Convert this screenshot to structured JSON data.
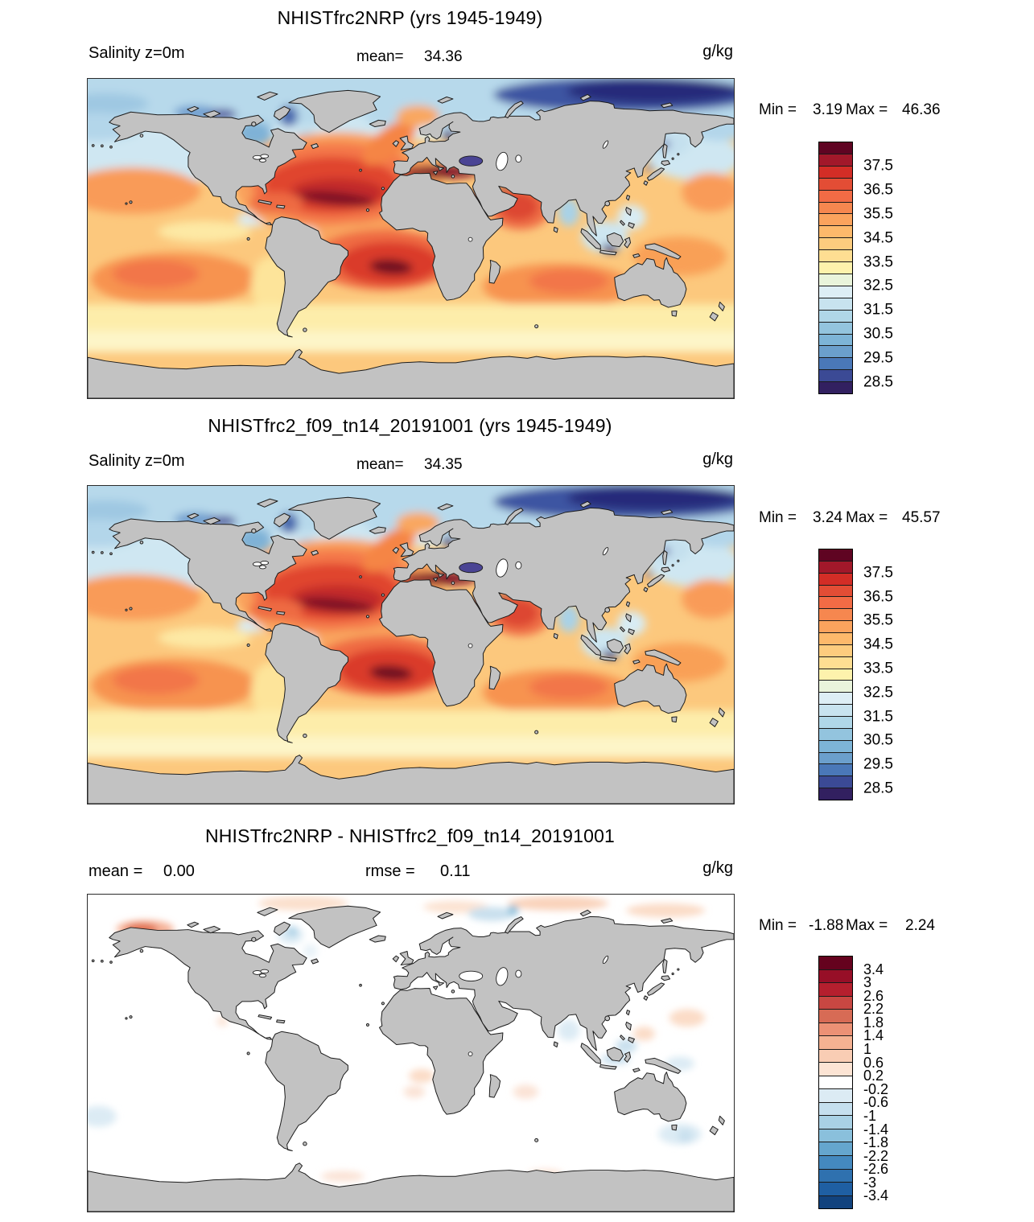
{
  "figure": {
    "panels": [
      {
        "title": "NHISTfrc2NRP (yrs 1945-1949)",
        "row": {
          "left_label": "Salinity z=0m",
          "mid_label": "mean=",
          "mid_value": "34.36",
          "units": "g/kg"
        },
        "stats": {
          "min_label": "Min =",
          "min_value": "3.19",
          "max_label": "Max =",
          "max_value": "46.36"
        },
        "colorbar": {
          "colors": [
            "#5f0422",
            "#a2182a",
            "#d32d26",
            "#e34d35",
            "#f26b45",
            "#f6874f",
            "#fba35d",
            "#fdb96b",
            "#fdcc7e",
            "#fede92",
            "#fdf2ac",
            "#e9f4db",
            "#ddeef5",
            "#c8e3ef",
            "#b0d7e8",
            "#93c4de",
            "#7db4d7",
            "#6b9fcc",
            "#4a78b8",
            "#3b4a95",
            "#322060"
          ],
          "labels": [
            "37.5",
            "36.5",
            "35.5",
            "34.5",
            "33.5",
            "32.5",
            "31.5",
            "30.5",
            "29.5",
            "28.5"
          ],
          "boundaries": [
            2,
            4,
            6,
            8,
            10,
            12,
            14,
            16,
            18,
            20
          ]
        }
      },
      {
        "title": "NHISTfrc2_f09_tn14_20191001 (yrs 1945-1949)",
        "row": {
          "left_label": "Salinity z=0m",
          "mid_label": "mean=",
          "mid_value": "34.35",
          "units": "g/kg"
        },
        "stats": {
          "min_label": "Min =",
          "min_value": "3.24",
          "max_label": "Max =",
          "max_value": "45.57"
        },
        "colorbar": {
          "colors": [
            "#5f0422",
            "#a2182a",
            "#d32d26",
            "#e34d35",
            "#f26b45",
            "#f6874f",
            "#fba35d",
            "#fdb96b",
            "#fdcc7e",
            "#fede92",
            "#fdf2ac",
            "#e9f4db",
            "#ddeef5",
            "#c8e3ef",
            "#b0d7e8",
            "#93c4de",
            "#7db4d7",
            "#6b9fcc",
            "#4a78b8",
            "#3b4a95",
            "#322060"
          ],
          "labels": [
            "37.5",
            "36.5",
            "35.5",
            "34.5",
            "33.5",
            "32.5",
            "31.5",
            "30.5",
            "29.5",
            "28.5"
          ],
          "boundaries": [
            2,
            4,
            6,
            8,
            10,
            12,
            14,
            16,
            18,
            20
          ]
        }
      },
      {
        "title": "NHISTfrc2NRP - NHISTfrc2_f09_tn14_20191001",
        "row": {
          "left_label": "mean =",
          "left_value": "0.00",
          "mid_label": "rmse =",
          "mid_value": "0.11",
          "units": "g/kg"
        },
        "stats": {
          "min_label": "Min =",
          "min_value": "-1.88",
          "max_label": "Max =",
          "max_value": "2.24"
        },
        "colorbar": {
          "colors": [
            "#65021e",
            "#970f27",
            "#b51f2e",
            "#c84742",
            "#d76b55",
            "#ec9175",
            "#f5b292",
            "#f9cdb4",
            "#fce4d4",
            "#ffffff",
            "#dcebf4",
            "#c5dfee",
            "#a9d1e5",
            "#8ac0dc",
            "#65a6ce",
            "#4489bf",
            "#2f71af",
            "#1f5fa3",
            "#12437e"
          ],
          "labels": [
            "3.4",
            "3",
            "2.6",
            "2.2",
            "1.8",
            "1.4",
            "1",
            "0.6",
            "0.2",
            "-0.2",
            "-0.6",
            "-1",
            "-1.4",
            "-1.8",
            "-2.2",
            "-2.6",
            "-3",
            "-3.4"
          ],
          "boundaries": [
            1,
            2,
            3,
            4,
            5,
            6,
            7,
            8,
            9,
            10,
            11,
            12,
            13,
            14,
            15,
            16,
            17,
            18
          ]
        }
      }
    ]
  },
  "map_colors": {
    "land": "#c2c2c2",
    "coast": "#1c1c1c",
    "border": "#2b2b2b",
    "diff_ocean": "#ffffff"
  },
  "chart_data": [
    {
      "type": "heatmap",
      "subtype": "filled-contour global map, equirectangular",
      "title": "NHISTfrc2NRP (yrs 1945-1949)",
      "variable": "Salinity z=0m",
      "units": "g/kg",
      "mean": 34.36,
      "min": 3.19,
      "max": 46.36,
      "colorbar": {
        "orientation": "vertical",
        "position": "right",
        "n_intervals": 21,
        "tick_labels": [
          37.5,
          36.5,
          35.5,
          34.5,
          33.5,
          32.5,
          31.5,
          30.5,
          29.5,
          28.5
        ],
        "interval": 0.5,
        "palette": [
          "#5f0422",
          "#a2182a",
          "#d32d26",
          "#e34d35",
          "#f26b45",
          "#f6874f",
          "#fba35d",
          "#fdb96b",
          "#fdcc7e",
          "#fede92",
          "#fdf2ac",
          "#e9f4db",
          "#ddeef5",
          "#c8e3ef",
          "#b0d7e8",
          "#93c4de",
          "#7db4d7",
          "#6b9fcc",
          "#4a78b8",
          "#3b4a95",
          "#322060"
        ]
      },
      "notable_features": "high salinity (dark red >37.5) in subtropical N Atlantic, S Atlantic and Mediterranean; low salinity (dark blue <28.5) in Russian Arctic, Baltic, SE Asian seas; land masked gray"
    },
    {
      "type": "heatmap",
      "subtype": "filled-contour global map, equirectangular",
      "title": "NHISTfrc2_f09_tn14_20191001 (yrs 1945-1949)",
      "variable": "Salinity z=0m",
      "units": "g/kg",
      "mean": 34.35,
      "min": 3.24,
      "max": 45.57,
      "colorbar": {
        "orientation": "vertical",
        "position": "right",
        "n_intervals": 21,
        "tick_labels": [
          37.5,
          36.5,
          35.5,
          34.5,
          33.5,
          32.5,
          31.5,
          30.5,
          29.5,
          28.5
        ],
        "interval": 0.5,
        "palette": [
          "#5f0422",
          "#a2182a",
          "#d32d26",
          "#e34d35",
          "#f26b45",
          "#f6874f",
          "#fba35d",
          "#fdb96b",
          "#fdcc7e",
          "#fede92",
          "#fdf2ac",
          "#e9f4db",
          "#ddeef5",
          "#c8e3ef",
          "#b0d7e8",
          "#93c4de",
          "#7db4d7",
          "#6b9fcc",
          "#4a78b8",
          "#3b4a95",
          "#322060"
        ]
      },
      "notable_features": "pattern nearly identical to NHISTfrc2NRP panel"
    },
    {
      "type": "heatmap",
      "subtype": "difference map (panel1 - panel2)",
      "title": "NHISTfrc2NRP - NHISTfrc2_f09_tn14_20191001",
      "units": "g/kg",
      "mean": 0.0,
      "rmse": 0.11,
      "min": -1.88,
      "max": 2.24,
      "colorbar": {
        "orientation": "vertical",
        "position": "right",
        "n_intervals": 19,
        "tick_labels": [
          3.4,
          3,
          2.6,
          2.2,
          1.8,
          1.4,
          1,
          0.6,
          0.2,
          -0.2,
          -0.6,
          -1,
          -1.4,
          -1.8,
          -2.2,
          -2.6,
          -3,
          -3.4
        ],
        "interval": 0.4,
        "palette": [
          "#65021e",
          "#970f27",
          "#b51f2e",
          "#c84742",
          "#d76b55",
          "#ec9175",
          "#f5b292",
          "#f9cdb4",
          "#fce4d4",
          "#ffffff",
          "#dcebf4",
          "#c5dfee",
          "#a9d1e5",
          "#8ac0dc",
          "#65a6ce",
          "#4489bf",
          "#2f71af",
          "#1f5fa3",
          "#12437e"
        ],
        "center": 0
      },
      "notable_features": "difference mostly near zero (white); small positive (red) patch in Beaufort Sea off Alaska and faint pink in Arctic; faint blue patches near Baffin Bay, Indonesia and SE of Australia"
    }
  ]
}
